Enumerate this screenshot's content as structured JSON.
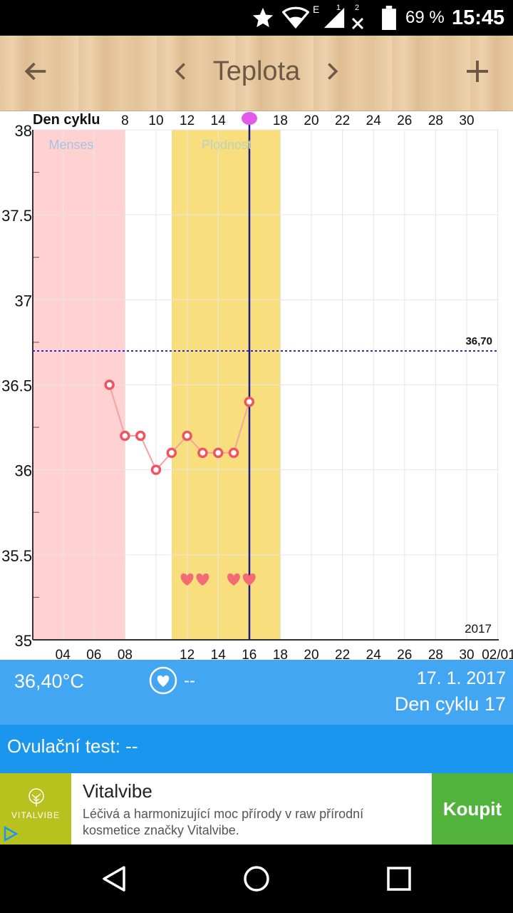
{
  "status_bar": {
    "network_type": "E",
    "sim1": "1",
    "sim2": "2",
    "battery": "69 %",
    "time": "15:45"
  },
  "toolbar": {
    "title": "Teplota",
    "back_icon": "arrow-left-icon",
    "prev_icon": "chevron-left-icon",
    "next_icon": "chevron-right-icon",
    "add_icon": "plus-icon"
  },
  "chart_data": {
    "type": "line",
    "top_axis_label": "Den cyklu",
    "top_ticks": [
      "8",
      "10",
      "12",
      "14",
      "",
      "18",
      "20",
      "22",
      "24",
      "26",
      "28",
      "30"
    ],
    "bottom_ticks": [
      "04",
      "06",
      "08",
      "12",
      "14",
      "16",
      "18",
      "20",
      "22",
      "24",
      "26",
      "28",
      "30",
      "02/01"
    ],
    "y_ticks": [
      "38",
      "37.5",
      "37",
      "36.5",
      "36",
      "35.5",
      "35"
    ],
    "ylim": [
      35,
      38
    ],
    "year_label": "2017",
    "threshold": {
      "value": 36.7,
      "label": "36,70"
    },
    "x_days": [
      7,
      8,
      9,
      10,
      11,
      12,
      13,
      14,
      15,
      16
    ],
    "temperatures": [
      36.5,
      36.2,
      36.2,
      36.0,
      36.1,
      36.2,
      36.1,
      36.1,
      36.1,
      36.4
    ],
    "regions": [
      {
        "label": "Menses",
        "color": "#ffd1d1",
        "label_color": "#a9c2e2"
      },
      {
        "label": "Plodnost",
        "color": "#f9de7e",
        "label_color": "#b9d3bf"
      }
    ],
    "ovulation_day": 16,
    "hearts_days": [
      12,
      13,
      15,
      16
    ],
    "line_color": "#f4a3a3",
    "point_color": "#ee5560"
  },
  "info": {
    "temperature": "36,40°C",
    "intercourse": "--",
    "date": "17. 1. 2017",
    "cycle_day": "Den cyklu 17"
  },
  "ovulation_test": {
    "text": "Ovulační test: --"
  },
  "ad": {
    "logo_text": "VITALVIBE",
    "title": "Vitalvibe",
    "body": "Léčivá a harmonizující moc přírody v raw přírodní kosmetice značky Vitalvibe.",
    "button": "Koupit"
  },
  "nav": {
    "back_icon": "nav-back-icon",
    "home_icon": "nav-home-icon",
    "recents_icon": "nav-recents-icon"
  }
}
